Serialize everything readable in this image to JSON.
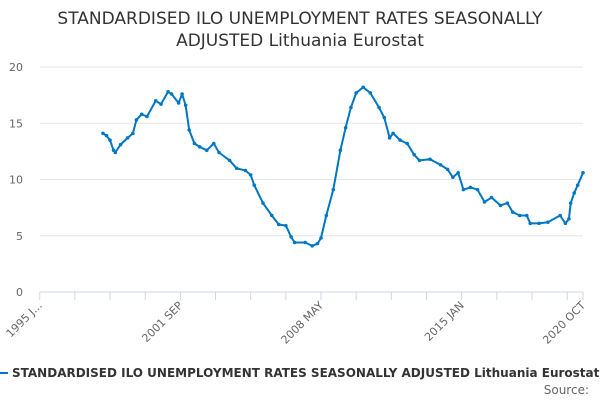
{
  "chart_data": {
    "type": "line",
    "title_lines": [
      "STANDARDISED ILO UNEMPLOYMENT RATES SEASONALLY",
      "ADJUSTED Lithuania Eurostat"
    ],
    "xlabel": "",
    "ylabel": "",
    "xlim": [
      "1995-01",
      "2020-10"
    ],
    "ylim": [
      0,
      20
    ],
    "y_ticks": [
      0,
      5,
      10,
      15,
      20
    ],
    "x_tick_labels": [
      {
        "date": "1995-01",
        "label": "1995 J..."
      },
      {
        "date": "2001-09",
        "label": "2001 SEP"
      },
      {
        "date": "2008-05",
        "label": "2008 MAY"
      },
      {
        "date": "2015-01",
        "label": "2015 JAN"
      },
      {
        "date": "2020-10",
        "label": "2020 OCT"
      }
    ],
    "x_tick_interval_months": 20,
    "grid": "horizontal",
    "legend_position": "bottom",
    "series": [
      {
        "name": "STANDARDISED ILO UNEMPLOYMENT RATES SEASONALLY ADJUSTED Lithuania Eurostat",
        "color": "#0077c2",
        "points": [
          [
            "1998-01",
            14.1
          ],
          [
            "1998-03",
            13.9
          ],
          [
            "1998-05",
            13.5
          ],
          [
            "1998-07",
            12.6
          ],
          [
            "1998-08",
            12.4
          ],
          [
            "1998-11",
            13.1
          ],
          [
            "1999-03",
            13.7
          ],
          [
            "1999-06",
            14.1
          ],
          [
            "1999-08",
            15.3
          ],
          [
            "1999-11",
            15.8
          ],
          [
            "2000-02",
            15.6
          ],
          [
            "2000-07",
            17.0
          ],
          [
            "2000-10",
            16.7
          ],
          [
            "2001-02",
            17.8
          ],
          [
            "2001-04",
            17.6
          ],
          [
            "2001-08",
            16.8
          ],
          [
            "2001-10",
            17.6
          ],
          [
            "2001-12",
            16.6
          ],
          [
            "2002-02",
            14.4
          ],
          [
            "2002-05",
            13.2
          ],
          [
            "2002-08",
            12.9
          ],
          [
            "2002-12",
            12.6
          ],
          [
            "2003-04",
            13.2
          ],
          [
            "2003-07",
            12.4
          ],
          [
            "2004-01",
            11.7
          ],
          [
            "2004-05",
            11.0
          ],
          [
            "2004-10",
            10.8
          ],
          [
            "2005-01",
            10.4
          ],
          [
            "2005-03",
            9.5
          ],
          [
            "2005-08",
            7.9
          ],
          [
            "2006-01",
            6.8
          ],
          [
            "2006-05",
            6.0
          ],
          [
            "2006-09",
            5.9
          ],
          [
            "2006-12",
            4.9
          ],
          [
            "2007-02",
            4.4
          ],
          [
            "2007-08",
            4.4
          ],
          [
            "2007-12",
            4.1
          ],
          [
            "2008-03",
            4.3
          ],
          [
            "2008-05",
            4.8
          ],
          [
            "2008-08",
            6.8
          ],
          [
            "2008-12",
            9.1
          ],
          [
            "2009-04",
            12.6
          ],
          [
            "2009-07",
            14.6
          ],
          [
            "2009-10",
            16.4
          ],
          [
            "2010-01",
            17.7
          ],
          [
            "2010-05",
            18.2
          ],
          [
            "2010-09",
            17.7
          ],
          [
            "2011-02",
            16.4
          ],
          [
            "2011-05",
            15.5
          ],
          [
            "2011-08",
            13.7
          ],
          [
            "2011-10",
            14.1
          ],
          [
            "2012-02",
            13.5
          ],
          [
            "2012-06",
            13.2
          ],
          [
            "2012-10",
            12.2
          ],
          [
            "2013-01",
            11.7
          ],
          [
            "2013-07",
            11.8
          ],
          [
            "2014-01",
            11.3
          ],
          [
            "2014-05",
            10.9
          ],
          [
            "2014-08",
            10.2
          ],
          [
            "2014-11",
            10.6
          ],
          [
            "2015-02",
            9.1
          ],
          [
            "2015-06",
            9.3
          ],
          [
            "2015-10",
            9.1
          ],
          [
            "2016-02",
            8.0
          ],
          [
            "2016-06",
            8.4
          ],
          [
            "2016-11",
            7.7
          ],
          [
            "2017-03",
            7.9
          ],
          [
            "2017-06",
            7.1
          ],
          [
            "2017-10",
            6.8
          ],
          [
            "2018-02",
            6.8
          ],
          [
            "2018-04",
            6.1
          ],
          [
            "2018-09",
            6.1
          ],
          [
            "2019-02",
            6.2
          ],
          [
            "2019-09",
            6.8
          ],
          [
            "2019-12",
            6.1
          ],
          [
            "2020-02",
            6.5
          ],
          [
            "2020-03",
            7.9
          ],
          [
            "2020-05",
            8.8
          ],
          [
            "2020-07",
            9.5
          ],
          [
            "2020-10",
            10.6
          ]
        ]
      }
    ],
    "source_label": "Source:"
  }
}
